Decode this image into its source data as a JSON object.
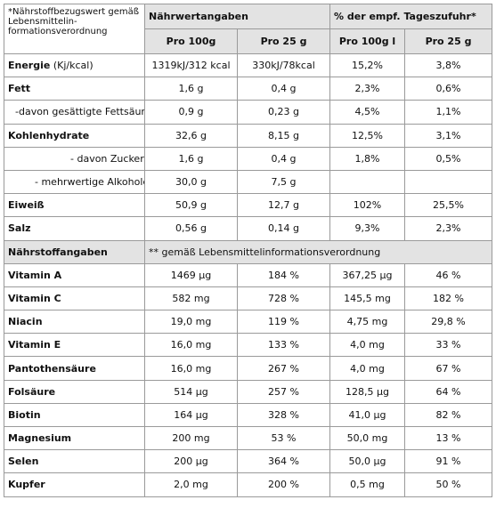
{
  "header": {
    "note": "*Nährstoffbezugswert gemäß Lebensmittelin-formationsverordnung",
    "naehrwertangaben": "Nährwertangaben",
    "tageszufuhr": "% der empf. Tageszufuhr*",
    "pro100g": "Pro 100g",
    "pro25g": "Pro 25 g",
    "pro100gl": "Pro 100g l",
    "pro25g_b": "Pro 25 g"
  },
  "energy": {
    "label": "Energie",
    "unit": " (Kj/kcal)",
    "v100": "1319kJ/312 kcal",
    "v25": "330kJ/78kcal",
    "p100": "15,2%",
    "p25": "3,8%"
  },
  "rows": [
    {
      "label": "Fett",
      "v100": "1,6 g",
      "v25": "0,4 g",
      "p100": "2,3%",
      "p25": "0,6%"
    },
    {
      "label": "-davon gesättigte Fettsäure",
      "v100": "0,9 g",
      "v25": "0,23 g",
      "p100": "4,5%",
      "p25": "1,1%"
    },
    {
      "label": "Kohlenhydrate",
      "v100": "32,6 g",
      "v25": "8,15 g",
      "p100": "12,5%",
      "p25": "3,1%"
    },
    {
      "label": "- davon Zucker",
      "v100": "1,6 g",
      "v25": "0,4 g",
      "p100": "1,8%",
      "p25": "0,5%"
    },
    {
      "label": "- mehrwertige Alkohole",
      "v100": "30,0 g",
      "v25": "7,5 g",
      "p100": "",
      "p25": ""
    },
    {
      "label": "Eiweiß",
      "v100": "50,9 g",
      "v25": "12,7 g",
      "p100": "102%",
      "p25": "25,5%"
    },
    {
      "label": "Salz",
      "v100": "0,56 g",
      "v25": "0,14 g",
      "p100": "9,3%",
      "p25": "2,3%"
    }
  ],
  "nutrient_section": {
    "label": "Nährstoffangaben",
    "note": "** gemäß Lebensmittelinformationsverordnung"
  },
  "vitamins": [
    {
      "label": "Vitamin A",
      "v100": "1469 µg",
      "p100": "184 %",
      "v25": "367,25 µg",
      "p25": "46 %"
    },
    {
      "label": "Vitamin C",
      "v100": "582 mg",
      "p100": "728 %",
      "v25": "145,5 mg",
      "p25": "182 %"
    },
    {
      "label": "Niacin",
      "v100": "19,0 mg",
      "p100": "119 %",
      "v25": "4,75 mg",
      "p25": "29,8 %"
    },
    {
      "label": "Vitamin E",
      "v100": "16,0 mg",
      "p100": "133 %",
      "v25": "4,0 mg",
      "p25": "33 %"
    },
    {
      "label": "Pantothensäure",
      "v100": "16,0 mg",
      "p100": "267 %",
      "v25": "4,0 mg",
      "p25": "67 %"
    },
    {
      "label": "Folsäure",
      "v100": "514 µg",
      "p100": "257 %",
      "v25": "128,5 µg",
      "p25": "64 %"
    },
    {
      "label": "Biotin",
      "v100": "164 µg",
      "p100": "328 %",
      "v25": "41,0 µg",
      "p25": "82 %"
    },
    {
      "label": "Magnesium",
      "v100": "200 mg",
      "p100": "53 %",
      "v25": "50,0 mg",
      "p25": "13 %"
    },
    {
      "label": "Selen",
      "v100": "200 µg",
      "p100": "364 %",
      "v25": "50,0 µg",
      "p25": "91 %"
    },
    {
      "label": "Kupfer",
      "v100": "2,0 mg",
      "p100": "200 %",
      "v25": "0,5 mg",
      "p25": "50 %"
    }
  ]
}
